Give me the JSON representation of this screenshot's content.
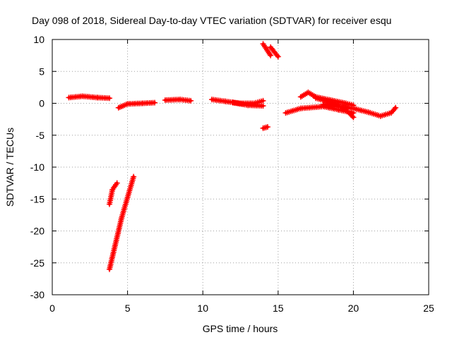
{
  "chart_data": {
    "type": "scatter",
    "title": "Day 098 of 2018, Sidereal Day-to-day VTEC variation (SDTVAR) for receiver esqu",
    "xlabel": "GPS time / hours",
    "ylabel": "SDTVAR / TECUs",
    "xlim": [
      0,
      25
    ],
    "ylim": [
      -30,
      10
    ],
    "x_ticks": [
      "0",
      "5",
      "10",
      "15",
      "20",
      "25"
    ],
    "y_ticks": [
      "10",
      "5",
      "0",
      "-5",
      "-10",
      "-15",
      "-20",
      "-25",
      "-30"
    ],
    "grid": true,
    "marker": "+",
    "colors": {
      "series": "#ff0000",
      "grid": "#a0a0a0",
      "axis": "#000000"
    },
    "segments": [
      {
        "points": [
          [
            1.1,
            0.9
          ],
          [
            2.0,
            1.1
          ],
          [
            3.0,
            0.9
          ],
          [
            3.8,
            0.8
          ]
        ]
      },
      {
        "points": [
          [
            4.4,
            -0.7
          ],
          [
            5.0,
            -0.1
          ],
          [
            6.0,
            0.0
          ],
          [
            6.8,
            0.1
          ]
        ]
      },
      {
        "points": [
          [
            7.5,
            0.5
          ],
          [
            8.5,
            0.6
          ],
          [
            9.2,
            0.4
          ]
        ]
      },
      {
        "points": [
          [
            10.6,
            0.6
          ],
          [
            11.5,
            0.3
          ],
          [
            12.5,
            0.0
          ],
          [
            13.4,
            0.0
          ],
          [
            14.0,
            0.4
          ]
        ]
      },
      {
        "points": [
          [
            12.0,
            0.1
          ],
          [
            13.0,
            -0.3
          ],
          [
            14.0,
            -0.4
          ]
        ]
      },
      {
        "points": [
          [
            14.0,
            9.3
          ],
          [
            14.5,
            7.5
          ]
        ]
      },
      {
        "points": [
          [
            14.5,
            8.8
          ],
          [
            15.0,
            7.3
          ]
        ]
      },
      {
        "points": [
          [
            14.0,
            -3.9
          ],
          [
            14.3,
            -3.7
          ]
        ]
      },
      {
        "points": [
          [
            3.8,
            -26.0
          ],
          [
            4.6,
            -18.0
          ],
          [
            5.4,
            -11.5
          ]
        ]
      },
      {
        "points": [
          [
            3.8,
            -15.8
          ],
          [
            4.0,
            -13.5
          ],
          [
            4.3,
            -12.5
          ]
        ]
      },
      {
        "points": [
          [
            15.5,
            -1.5
          ],
          [
            16.5,
            -0.8
          ],
          [
            18.0,
            -0.5
          ],
          [
            19.0,
            -1.0
          ],
          [
            20.0,
            -1.5
          ]
        ]
      },
      {
        "points": [
          [
            16.5,
            1.0
          ],
          [
            17.0,
            1.7
          ],
          [
            17.5,
            1.0
          ],
          [
            18.5,
            0.5
          ],
          [
            19.5,
            0.0
          ],
          [
            20.0,
            -0.3
          ]
        ]
      },
      {
        "points": [
          [
            17.5,
            0.8
          ],
          [
            18.5,
            0.2
          ],
          [
            19.5,
            -1.0
          ],
          [
            20.0,
            -2.2
          ]
        ]
      },
      {
        "points": [
          [
            18.0,
            -0.2
          ],
          [
            19.0,
            -0.5
          ],
          [
            20.0,
            -0.8
          ],
          [
            21.0,
            -1.4
          ],
          [
            21.8,
            -2.0
          ],
          [
            22.5,
            -1.5
          ],
          [
            22.8,
            -0.7
          ]
        ]
      }
    ]
  }
}
